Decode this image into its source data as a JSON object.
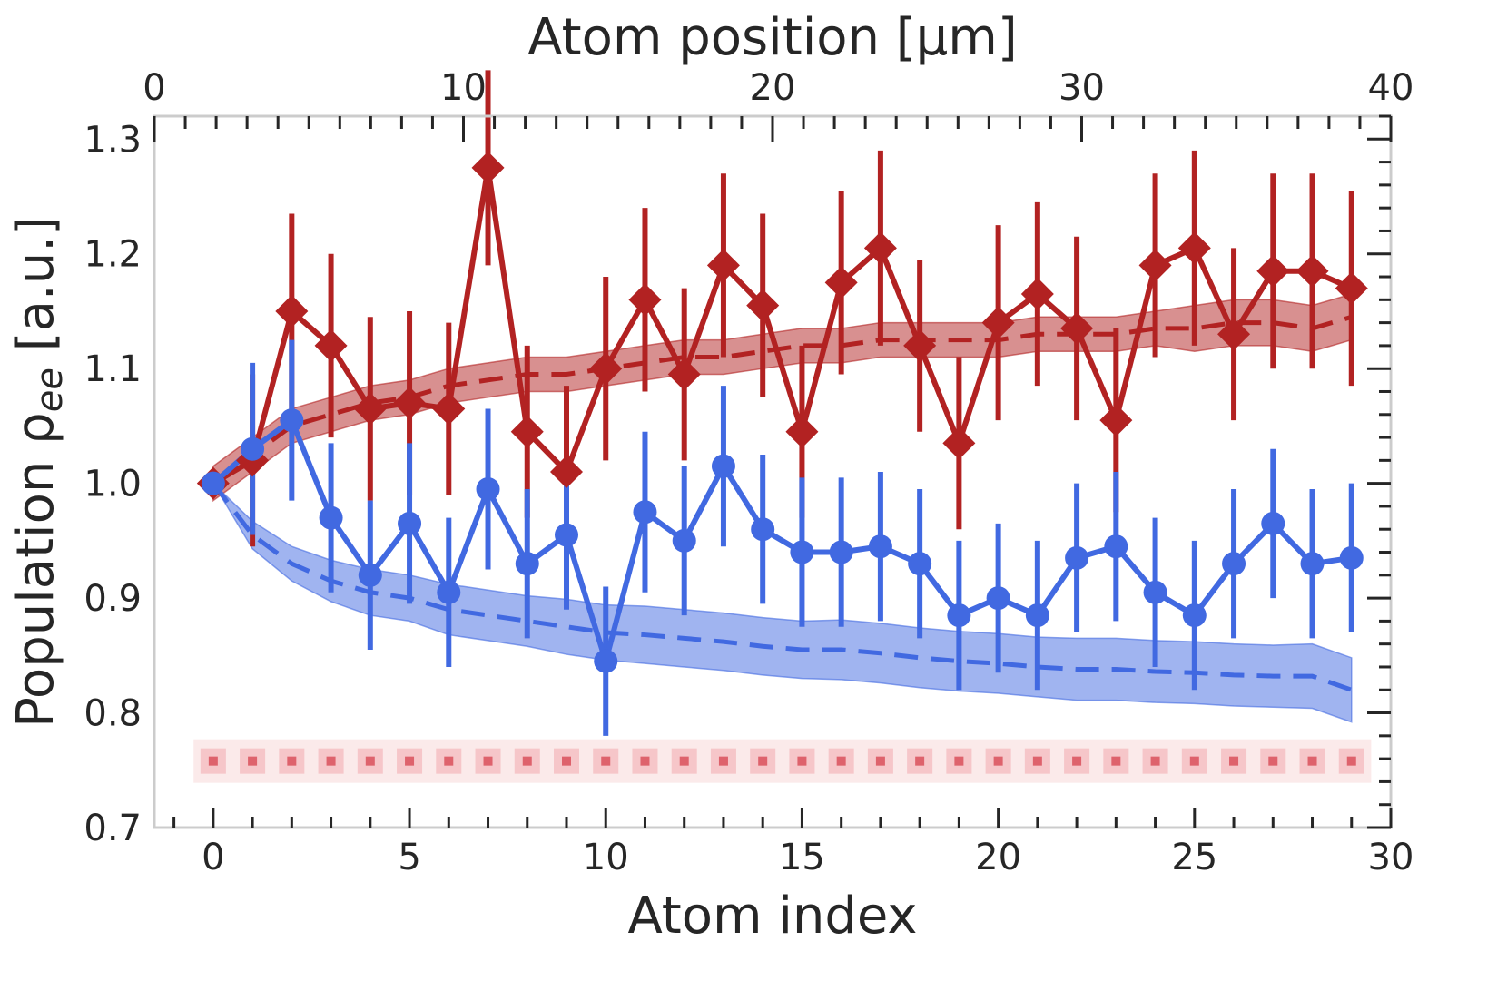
{
  "chart_data": {
    "type": "line",
    "xlabel": "Atom index",
    "ylabel_main": "Population ρ",
    "ylabel_sub": "ee",
    "ylabel_unit": " [a.u.]",
    "x2label": "Atom position [μm]",
    "xlim": [
      -1.5,
      30
    ],
    "ylim": [
      0.7,
      1.32
    ],
    "x2lim": [
      0,
      40
    ],
    "xticks": [
      "0",
      "5",
      "10",
      "15",
      "20",
      "25",
      "30"
    ],
    "yticks": [
      "0.7",
      "0.8",
      "0.9",
      "1.0",
      "1.1",
      "1.2",
      "1.3"
    ],
    "x2ticks": [
      "0",
      "10",
      "20",
      "30",
      "40"
    ],
    "grid": false,
    "colors": {
      "red": "#b22222",
      "blue": "#4169e1",
      "axis": "#cccccc",
      "tick": "#262626"
    },
    "series": [
      {
        "color": "red",
        "marker": "diamond",
        "x": [
          0,
          1,
          2,
          3,
          4,
          5,
          6,
          7,
          8,
          9,
          10,
          11,
          12,
          13,
          14,
          15,
          16,
          17,
          18,
          19,
          20,
          21,
          22,
          23,
          24,
          25,
          26,
          27,
          28,
          29
        ],
        "y": [
          1.0,
          1.02,
          1.15,
          1.12,
          1.065,
          1.07,
          1.065,
          1.275,
          1.045,
          1.01,
          1.1,
          1.16,
          1.095,
          1.19,
          1.155,
          1.045,
          1.175,
          1.205,
          1.12,
          1.035,
          1.14,
          1.165,
          1.135,
          1.055,
          1.19,
          1.205,
          1.13,
          1.185,
          1.185,
          1.17
        ],
        "err": [
          0.0,
          0.075,
          0.085,
          0.08,
          0.08,
          0.08,
          0.075,
          0.085,
          0.075,
          0.075,
          0.08,
          0.08,
          0.075,
          0.08,
          0.08,
          0.075,
          0.08,
          0.085,
          0.075,
          0.075,
          0.085,
          0.08,
          0.08,
          0.08,
          0.08,
          0.085,
          0.075,
          0.085,
          0.085,
          0.085
        ],
        "model": [
          1.0,
          1.025,
          1.05,
          1.06,
          1.07,
          1.075,
          1.085,
          1.09,
          1.095,
          1.095,
          1.1,
          1.105,
          1.11,
          1.11,
          1.115,
          1.12,
          1.12,
          1.125,
          1.125,
          1.125,
          1.125,
          1.13,
          1.13,
          1.13,
          1.135,
          1.135,
          1.14,
          1.14,
          1.135,
          1.145
        ],
        "band": [
          0.015,
          0.015,
          0.015,
          0.015,
          0.015,
          0.015,
          0.015,
          0.015,
          0.015,
          0.015,
          0.015,
          0.015,
          0.015,
          0.015,
          0.015,
          0.015,
          0.015,
          0.015,
          0.015,
          0.015,
          0.015,
          0.015,
          0.015,
          0.015,
          0.015,
          0.02,
          0.02,
          0.02,
          0.02,
          0.02
        ]
      },
      {
        "color": "blue",
        "marker": "circle",
        "x": [
          0,
          1,
          2,
          3,
          4,
          5,
          6,
          7,
          8,
          9,
          10,
          11,
          12,
          13,
          14,
          15,
          16,
          17,
          18,
          19,
          20,
          21,
          22,
          23,
          24,
          25,
          26,
          27,
          28,
          29
        ],
        "y": [
          1.0,
          1.03,
          1.055,
          0.97,
          0.92,
          0.965,
          0.905,
          0.995,
          0.93,
          0.955,
          0.845,
          0.975,
          0.95,
          1.015,
          0.96,
          0.94,
          0.94,
          0.945,
          0.93,
          0.885,
          0.9,
          0.885,
          0.935,
          0.945,
          0.905,
          0.885,
          0.93,
          0.965,
          0.93,
          0.935
        ],
        "err": [
          0.0,
          0.075,
          0.07,
          0.065,
          0.065,
          0.07,
          0.065,
          0.07,
          0.065,
          0.065,
          0.065,
          0.07,
          0.065,
          0.07,
          0.065,
          0.065,
          0.065,
          0.065,
          0.065,
          0.065,
          0.065,
          0.065,
          0.065,
          0.065,
          0.065,
          0.065,
          0.065,
          0.065,
          0.065,
          0.065
        ],
        "model": [
          1.0,
          0.955,
          0.93,
          0.915,
          0.905,
          0.9,
          0.89,
          0.885,
          0.88,
          0.875,
          0.87,
          0.868,
          0.865,
          0.862,
          0.858,
          0.855,
          0.855,
          0.852,
          0.848,
          0.845,
          0.843,
          0.84,
          0.838,
          0.838,
          0.836,
          0.835,
          0.833,
          0.832,
          0.832,
          0.82
        ],
        "band": [
          0.0,
          0.012,
          0.015,
          0.018,
          0.02,
          0.02,
          0.022,
          0.022,
          0.022,
          0.024,
          0.024,
          0.025,
          0.025,
          0.025,
          0.025,
          0.025,
          0.026,
          0.026,
          0.026,
          0.026,
          0.026,
          0.026,
          0.027,
          0.027,
          0.027,
          0.027,
          0.027,
          0.027,
          0.028,
          0.028
        ]
      }
    ],
    "atoms": {
      "count": 30,
      "y": 0.758
    }
  }
}
